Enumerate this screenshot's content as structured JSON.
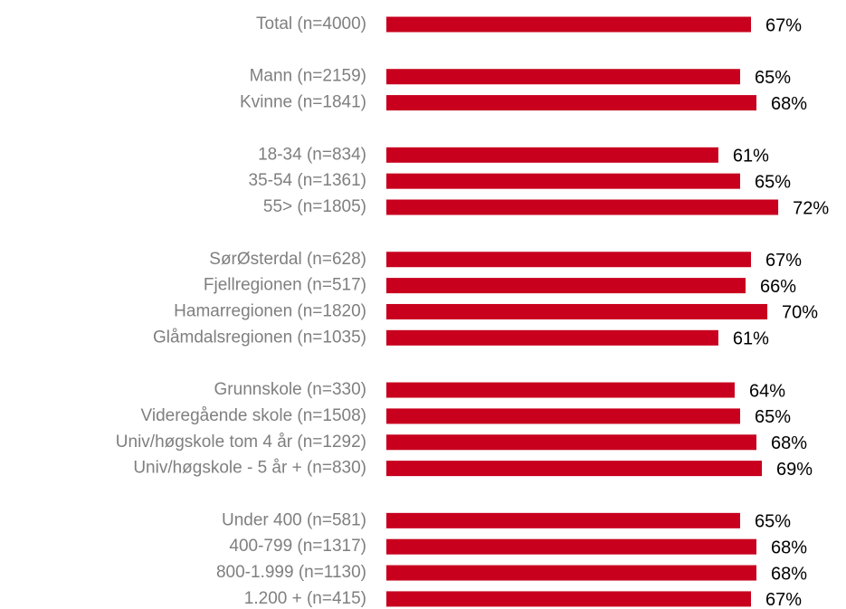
{
  "chart_data": {
    "type": "bar",
    "orientation": "horizontal",
    "color": "#c8001e",
    "categories": [
      "Total (n=4000)",
      null,
      "Mann (n=2159)",
      "Kvinne (n=1841)",
      null,
      "18-34 (n=834)",
      "35-54 (n=1361)",
      "55> (n=1805)",
      null,
      "SørØsterdal (n=628)",
      "Fjellregionen (n=517)",
      "Hamarregionen (n=1820)",
      "Glåmdalsregionen (n=1035)",
      null,
      "Grunnskole (n=330)",
      "Videregående skole (n=1508)",
      "Univ/høgskole tom 4 år (n=1292)",
      "Univ/høgskole - 5 år + (n=830)",
      null,
      "Under 400 (n=581)",
      "400-799 (n=1317)",
      "800-1.999 (n=1130)",
      "1.200 + (n=415)"
    ],
    "values": [
      67,
      null,
      65,
      68,
      null,
      61,
      65,
      72,
      null,
      67,
      66,
      70,
      61,
      null,
      64,
      65,
      68,
      69,
      null,
      65,
      68,
      68,
      67
    ],
    "value_labels": [
      "67%",
      null,
      "65%",
      "68%",
      null,
      "61%",
      "65%",
      "72%",
      null,
      "67%",
      "66%",
      "70%",
      "61%",
      null,
      "64%",
      "65%",
      "68%",
      "69%",
      null,
      "65%",
      "68%",
      "68%",
      "67%"
    ]
  }
}
